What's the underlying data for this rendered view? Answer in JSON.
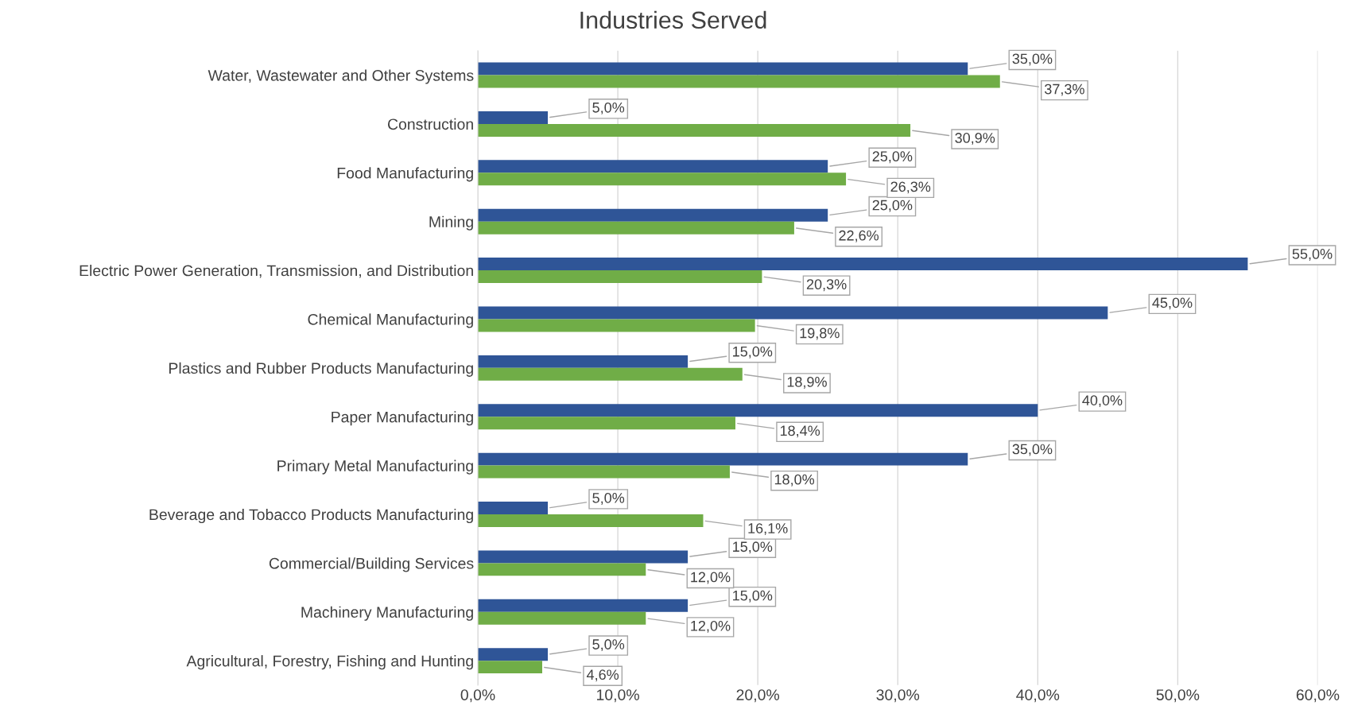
{
  "chart_data": {
    "type": "bar",
    "orientation": "horizontal",
    "title": "Industries Served",
    "categories": [
      "Water, Wastewater and Other Systems",
      "Construction",
      "Food Manufacturing",
      "Mining",
      "Electric Power Generation, Transmission, and Distribution",
      "Chemical Manufacturing",
      "Plastics and Rubber Products Manufacturing",
      "Paper Manufacturing",
      "Primary Metal Manufacturing",
      "Beverage and Tobacco Products Manufacturing",
      "Commercial/Building Services",
      "Machinery Manufacturing",
      "Agricultural, Forestry, Fishing and Hunting"
    ],
    "series": [
      {
        "color": "#2f5597",
        "values": [
          35.0,
          5.0,
          25.0,
          25.0,
          55.0,
          45.0,
          15.0,
          40.0,
          35.0,
          5.0,
          15.0,
          15.0,
          5.0
        ],
        "value_labels": [
          "35,0%",
          "5,0%",
          "25,0%",
          "25,0%",
          "55,0%",
          "45,0%",
          "15,0%",
          "40,0%",
          "35,0%",
          "5,0%",
          "15,0%",
          "15,0%",
          "5,0%"
        ]
      },
      {
        "color": "#70ad47",
        "values": [
          37.3,
          30.9,
          26.3,
          22.6,
          20.3,
          19.8,
          18.9,
          18.4,
          18.0,
          16.1,
          12.0,
          12.0,
          4.6
        ],
        "value_labels": [
          "37,3%",
          "30,9%",
          "26,3%",
          "22,6%",
          "20,3%",
          "19,8%",
          "18,9%",
          "18,4%",
          "18,0%",
          "16,1%",
          "12,0%",
          "12,0%",
          "4,6%"
        ]
      }
    ],
    "xlim": [
      0,
      60
    ],
    "xticks": [
      {
        "value": 0,
        "label": "0,0%"
      },
      {
        "value": 10,
        "label": "10,0%"
      },
      {
        "value": 20,
        "label": "20,0%"
      },
      {
        "value": 30,
        "label": "30,0%"
      },
      {
        "value": 40,
        "label": "40,0%"
      },
      {
        "value": 50,
        "label": "50,0%"
      },
      {
        "value": 60,
        "label": "60,0%"
      }
    ],
    "grid": "x",
    "legend": false
  }
}
